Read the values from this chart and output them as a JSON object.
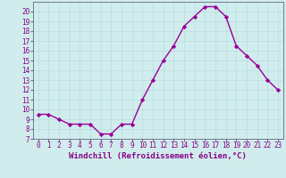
{
  "x": [
    0,
    1,
    2,
    3,
    4,
    5,
    6,
    7,
    8,
    9,
    10,
    11,
    12,
    13,
    14,
    15,
    16,
    17,
    18,
    19,
    20,
    21,
    22,
    23
  ],
  "y": [
    9.5,
    9.5,
    9.0,
    8.5,
    8.5,
    8.5,
    7.5,
    7.5,
    8.5,
    8.5,
    11.0,
    13.0,
    15.0,
    16.5,
    18.5,
    19.5,
    20.5,
    20.5,
    19.5,
    16.5,
    15.5,
    14.5,
    13.0,
    12.0
  ],
  "line_color": "#990099",
  "marker": "D",
  "markersize": 2.2,
  "linewidth": 1.0,
  "xlabel": "Windchill (Refroidissement éolien,°C)",
  "xlabel_fontsize": 6.5,
  "xtick_labels": [
    "0",
    "1",
    "2",
    "3",
    "4",
    "5",
    "6",
    "7",
    "8",
    "9",
    "10",
    "11",
    "12",
    "13",
    "14",
    "15",
    "16",
    "17",
    "18",
    "19",
    "20",
    "21",
    "22",
    "23"
  ],
  "ylim": [
    7,
    21
  ],
  "yticks": [
    7,
    8,
    9,
    10,
    11,
    12,
    13,
    14,
    15,
    16,
    17,
    18,
    19,
    20
  ],
  "grid_color": "#b8dede",
  "bg_color": "#d0ecec",
  "tick_fontsize": 5.5,
  "tick_color": "#880088",
  "spine_color": "#666688"
}
